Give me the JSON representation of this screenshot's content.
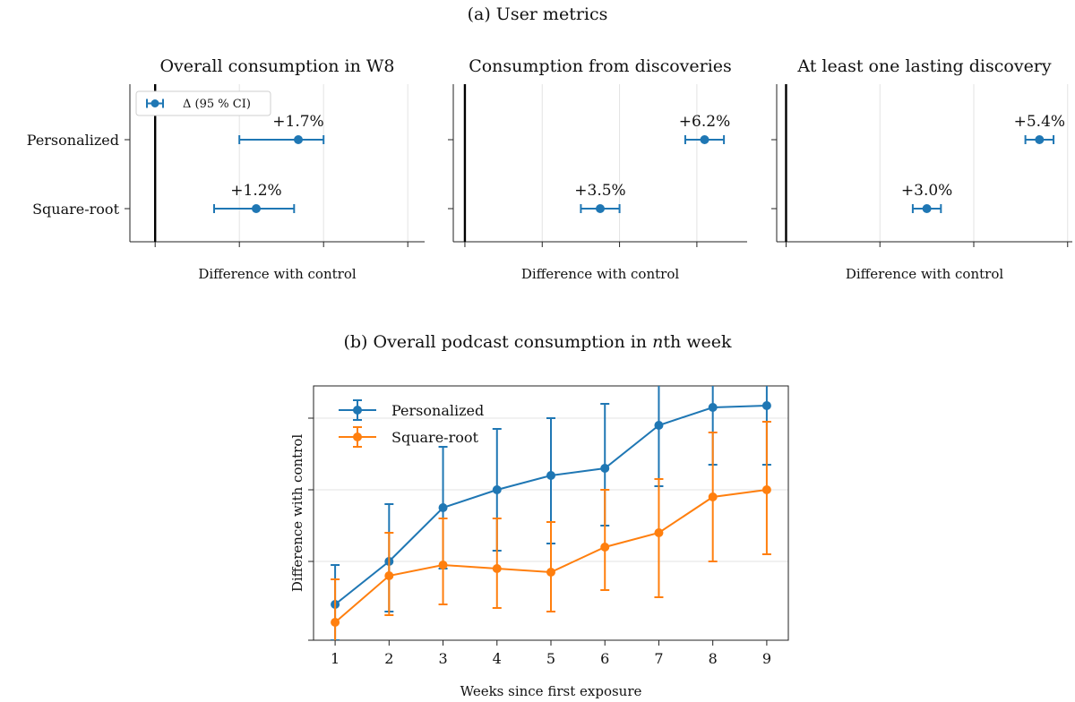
{
  "figure": {
    "panel_a_title": "(a) User metrics",
    "panel_b_title_pre": "(b) Overall podcast consumption in ",
    "panel_b_title_ital": "n",
    "panel_b_title_post": "th week"
  },
  "chart_data": [
    {
      "type": "errorbar",
      "title": "Overall consumption in W8",
      "xlabel": "Difference with control",
      "categories": [
        "Personalized",
        "Square-root"
      ],
      "legend": {
        "label": "Δ (95 % CI)",
        "position": "top-left"
      },
      "xlim": [
        -0.3,
        3.2
      ],
      "grid": "x",
      "points": [
        {
          "category": "Personalized",
          "value": 1.7,
          "low": 1.0,
          "high": 2.0,
          "label": "+1.7%"
        },
        {
          "category": "Square-root",
          "value": 1.2,
          "low": 0.7,
          "high": 1.65,
          "label": "+1.2%"
        }
      ]
    },
    {
      "type": "errorbar",
      "title": "Consumption from discoveries",
      "xlabel": "Difference with control",
      "categories": [
        "Personalized",
        "Square-root"
      ],
      "xlim": [
        -0.3,
        7.3
      ],
      "grid": "x",
      "points": [
        {
          "category": "Personalized",
          "value": 6.2,
          "low": 5.7,
          "high": 6.7,
          "label": "+6.2%"
        },
        {
          "category": "Square-root",
          "value": 3.5,
          "low": 3.0,
          "high": 4.0,
          "label": "+3.5%"
        }
      ]
    },
    {
      "type": "errorbar",
      "title": "At least one lasting discovery",
      "xlabel": "Difference with control",
      "categories": [
        "Personalized",
        "Square-root"
      ],
      "xlim": [
        -0.2,
        6.1
      ],
      "grid": "x",
      "points": [
        {
          "category": "Personalized",
          "value": 5.4,
          "low": 5.1,
          "high": 5.7,
          "label": "+5.4%"
        },
        {
          "category": "Square-root",
          "value": 3.0,
          "low": 2.7,
          "high": 3.3,
          "label": "+3.0%"
        }
      ]
    },
    {
      "type": "line",
      "xlabel": "Weeks since first exposure",
      "ylabel": "Difference with control",
      "x": [
        1,
        2,
        3,
        4,
        5,
        6,
        7,
        8,
        9
      ],
      "xlim": [
        0.6,
        9.4
      ],
      "ylim": [
        -0.2,
        6.9
      ],
      "grid": "y",
      "legend": "top-left",
      "series": [
        {
          "name": "Personalized",
          "color": "#1f77b4",
          "values": [
            0.8,
            2.0,
            3.5,
            4.0,
            4.4,
            4.6,
            5.8,
            6.3,
            6.35
          ],
          "low": [
            -0.2,
            0.6,
            1.8,
            2.3,
            2.5,
            3.0,
            4.1,
            4.7,
            4.7
          ],
          "high": [
            1.9,
            3.6,
            5.2,
            5.7,
            6.0,
            6.4,
            7.4,
            7.9,
            8.0
          ]
        },
        {
          "name": "Square-root",
          "color": "#ff7f0e",
          "values": [
            0.3,
            1.6,
            1.9,
            1.8,
            1.7,
            2.4,
            2.8,
            3.8,
            4.0
          ],
          "low": [
            -0.9,
            0.5,
            0.8,
            0.7,
            0.6,
            1.2,
            1.0,
            2.0,
            2.2
          ],
          "high": [
            1.5,
            2.8,
            3.2,
            3.2,
            3.1,
            4.0,
            4.3,
            5.6,
            5.9
          ]
        }
      ]
    }
  ]
}
